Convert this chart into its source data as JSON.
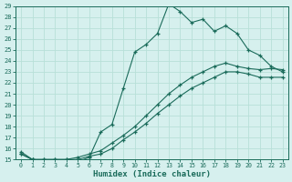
{
  "xlabel": "Humidex (Indice chaleur)",
  "bg_color": "#d6f0ee",
  "grid_color": "#b8e0d8",
  "line_color": "#1a6b5a",
  "xlim": [
    -0.5,
    23.5
  ],
  "ylim": [
    15,
    29
  ],
  "xticks": [
    0,
    1,
    2,
    3,
    4,
    5,
    6,
    7,
    8,
    9,
    10,
    11,
    12,
    13,
    14,
    15,
    16,
    17,
    18,
    19,
    20,
    21,
    22,
    23
  ],
  "yticks": [
    15,
    16,
    17,
    18,
    19,
    20,
    21,
    22,
    23,
    24,
    25,
    26,
    27,
    28,
    29
  ],
  "line1_x": [
    0,
    1,
    2,
    3,
    4,
    5,
    6,
    7,
    8,
    9,
    10,
    11,
    12,
    13,
    14,
    15,
    16,
    17,
    18,
    19,
    20,
    21,
    22,
    23
  ],
  "line1_y": [
    15.7,
    15.0,
    14.8,
    14.8,
    14.7,
    14.8,
    15.2,
    17.5,
    18.2,
    21.5,
    24.8,
    25.5,
    26.5,
    29.2,
    28.5,
    27.5,
    27.8,
    26.7,
    27.2,
    26.5,
    25.0,
    24.5,
    23.5,
    23.0
  ],
  "line2_x": [
    0,
    1,
    2,
    3,
    4,
    5,
    6,
    7,
    8,
    9,
    10,
    11,
    12,
    13,
    14,
    15,
    16,
    17,
    18,
    19,
    20,
    21,
    22,
    23
  ],
  "line2_y": [
    15.5,
    15.0,
    15.0,
    15.0,
    15.0,
    15.2,
    15.5,
    15.8,
    16.5,
    17.2,
    18.0,
    19.0,
    20.0,
    21.0,
    21.8,
    22.5,
    23.0,
    23.5,
    23.8,
    23.5,
    23.3,
    23.2,
    23.3,
    23.2
  ],
  "line3_x": [
    0,
    1,
    2,
    3,
    4,
    5,
    6,
    7,
    8,
    9,
    10,
    11,
    12,
    13,
    14,
    15,
    16,
    17,
    18,
    19,
    20,
    21,
    22,
    23
  ],
  "line3_y": [
    15.5,
    15.0,
    15.0,
    15.0,
    15.0,
    15.0,
    15.3,
    15.5,
    16.0,
    16.8,
    17.5,
    18.3,
    19.2,
    20.0,
    20.8,
    21.5,
    22.0,
    22.5,
    23.0,
    23.0,
    22.8,
    22.5,
    22.5,
    22.5
  ]
}
